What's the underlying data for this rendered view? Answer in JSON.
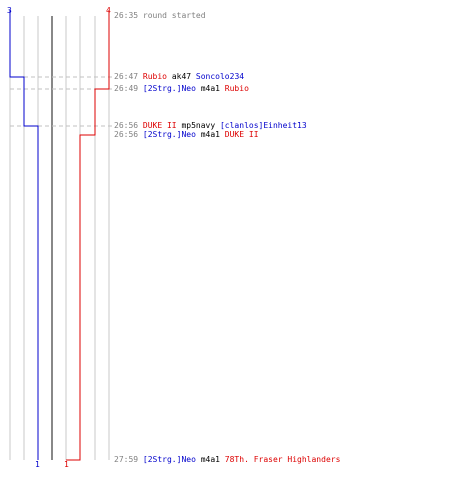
{
  "colors": {
    "team_blue": "#0000cc",
    "team_red": "#dd0000",
    "grid": "#c8c8c8",
    "center_line": "#888888",
    "dashed": "#c0c0c0",
    "time_text": "#808080",
    "weapon_text": "#000000"
  },
  "header": {
    "blue_start_count": "3",
    "red_start_count": "4"
  },
  "footer": {
    "blue_end_count": "1",
    "red_end_count": "1"
  },
  "log": [
    {
      "time": "26:35",
      "parts": [
        {
          "text": "round started",
          "color": "#808080"
        }
      ]
    },
    {
      "time": "26:47",
      "parts": [
        {
          "text": "Rubio",
          "color": "#dd0000"
        },
        {
          "text": " ak47 ",
          "color": "#000000"
        },
        {
          "text": "Soncolo234",
          "color": "#0000cc"
        }
      ]
    },
    {
      "time": "26:49",
      "parts": [
        {
          "text": "[2Strg.]Neo",
          "color": "#0000cc"
        },
        {
          "text": " m4a1 ",
          "color": "#000000"
        },
        {
          "text": "Rubio",
          "color": "#dd0000"
        }
      ]
    },
    {
      "time": "26:56",
      "parts": [
        {
          "text": "DUKE II",
          "color": "#dd0000"
        },
        {
          "text": " mp5navy ",
          "color": "#000000"
        },
        {
          "text": "[clanlos]Einheit13",
          "color": "#0000cc"
        }
      ]
    },
    {
      "time": "26:56",
      "parts": [
        {
          "text": "[2Strg.]Neo",
          "color": "#0000cc"
        },
        {
          "text": " m4a1 ",
          "color": "#000000"
        },
        {
          "text": "DUKE II",
          "color": "#dd0000"
        }
      ]
    },
    {
      "time": "27:59",
      "parts": [
        {
          "text": "[2Strg.]Neo",
          "color": "#0000cc"
        },
        {
          "text": " m4a1 ",
          "color": "#000000"
        },
        {
          "text": "78Th. Fraser Highlanders",
          "color": "#dd0000"
        }
      ]
    }
  ]
}
